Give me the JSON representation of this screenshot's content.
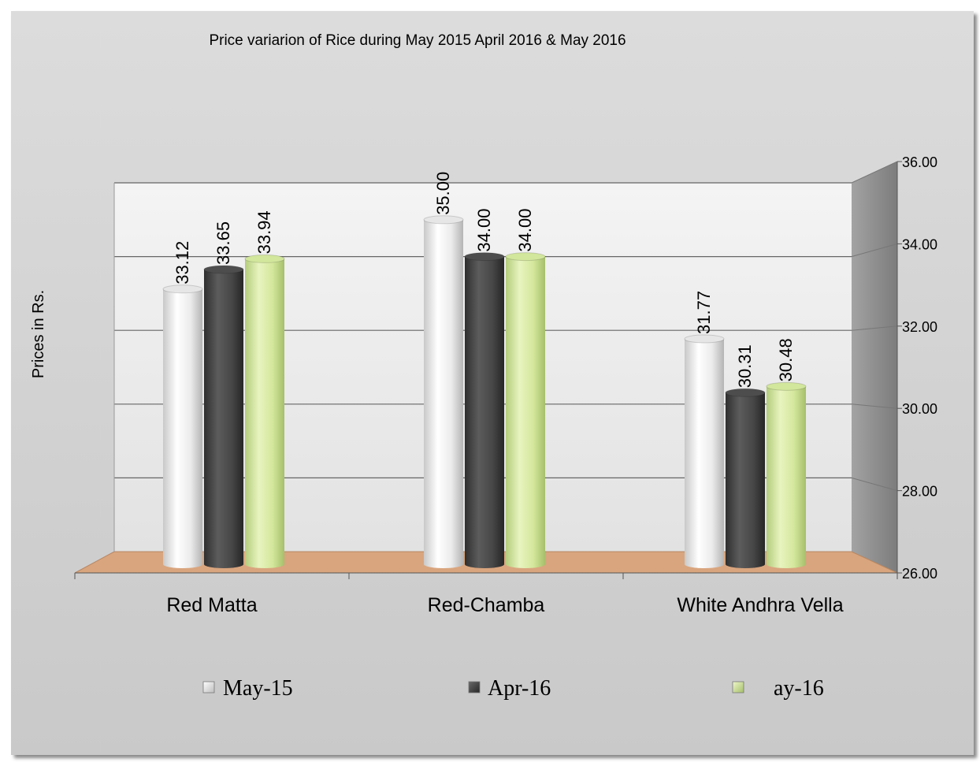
{
  "chart_data": {
    "type": "bar",
    "title": "Price variarion  of Rice during May 2015 April 2016 & May 2016",
    "ylabel": "Prices in Rs.",
    "xlabel": "",
    "categories": [
      "Red Matta",
      "Red-Chamba",
      "White Andhra Vella"
    ],
    "series": [
      {
        "name": "May-15",
        "values": [
          33.12,
          35.0,
          31.77
        ],
        "labels": [
          "33.12",
          "35.00",
          "31.77"
        ],
        "color": "#e6e6e6"
      },
      {
        "name": "Apr-16",
        "values": [
          33.65,
          34.0,
          30.31
        ],
        "labels": [
          "33.65",
          "34.00",
          "30.31"
        ],
        "color": "#4d4d4d"
      },
      {
        "name": "ay-16",
        "values": [
          33.94,
          34.0,
          30.48
        ],
        "labels": [
          "33.94",
          "34.00",
          "30.48"
        ],
        "color": "#d2e69c"
      }
    ],
    "ylim": [
      26,
      36
    ],
    "y_ticks": [
      "26.00",
      "28.00",
      "30.00",
      "32.00",
      "34.00",
      "36.00"
    ],
    "y_axis_side": "right",
    "grid": true,
    "legend_position": "bottom",
    "colors": {
      "background": "#d4d4d4",
      "wall": "#ececec",
      "side_wall": "#8f8f8f",
      "floor": "#d9a57e"
    }
  }
}
